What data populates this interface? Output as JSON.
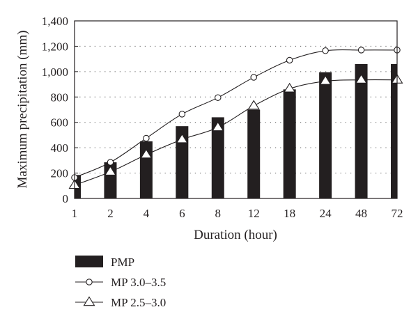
{
  "chart_data": {
    "type": "bar",
    "xlabel": "Duration (hour)",
    "ylabel": "Maximum precipitation (mm)",
    "categories": [
      "1",
      "2",
      "4",
      "6",
      "8",
      "12",
      "18",
      "24",
      "48",
      "72"
    ],
    "ylim": [
      0,
      1400
    ],
    "yticks": [
      0,
      200,
      400,
      600,
      800,
      1000,
      1200,
      1400
    ],
    "ytick_labels": [
      "0",
      "200",
      "400",
      "600",
      "800",
      "1,000",
      "1,200",
      "1,400"
    ],
    "grid": "horizontal dotted",
    "legend_position": "bottom-left",
    "series": [
      {
        "name": "PMP",
        "kind": "bar",
        "color": "#231f20",
        "values": [
          185,
          285,
          450,
          570,
          640,
          700,
          860,
          995,
          1060,
          1060
        ]
      },
      {
        "name": "MP 3.0–3.5",
        "kind": "line",
        "marker": "circle",
        "color": "#231f20",
        "values": [
          165,
          285,
          475,
          665,
          795,
          955,
          1090,
          1165,
          1170,
          1170
        ]
      },
      {
        "name": "MP 2.5–3.0",
        "kind": "line",
        "marker": "triangle",
        "color": "#231f20",
        "values": [
          105,
          210,
          345,
          465,
          560,
          730,
          865,
          925,
          935,
          935
        ]
      }
    ]
  }
}
